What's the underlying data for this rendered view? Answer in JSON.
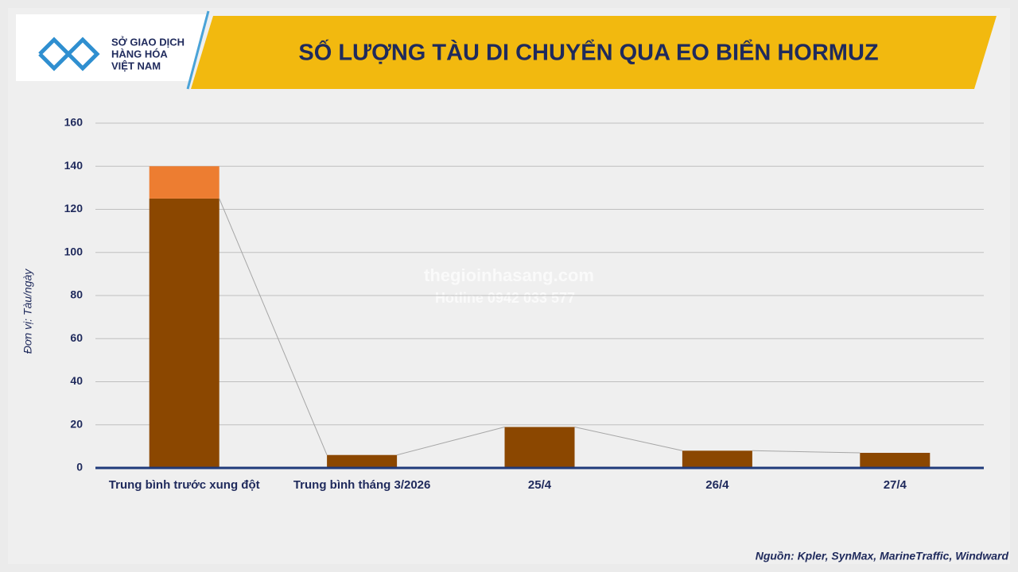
{
  "chart_data": {
    "type": "stacked-bar",
    "title": "SỐ LƯỢNG TÀU DI CHUYỂN QUA EO BIỂN HORMUZ",
    "logo": [
      "SỞ GIAO DỊCH",
      "HÀNG HÓA",
      "VIỆT NAM"
    ],
    "y_label": "Đơn vị: Tàu/ngày",
    "source": "Nguồn: Kpler, SynMax, MarineTraffic, Windward",
    "watermark": [
      "thegioinhasang.com",
      "Hotline 0942 033 577"
    ],
    "categories": [
      "Trung bình trước xung đột",
      "Trung bình tháng 3/2026",
      "25/4",
      "26/4",
      "27/4"
    ],
    "series": [
      {
        "color": "#8b4700",
        "values": [
          125,
          6,
          19,
          8,
          7
        ]
      },
      {
        "color": "#ed7d31",
        "values": [
          15,
          null,
          null,
          null,
          null
        ]
      }
    ],
    "ylim": [
      0,
      160
    ],
    "yticks": [
      0,
      20,
      40,
      60,
      80,
      100,
      120,
      140,
      160
    ],
    "grid": true,
    "connector_color": "#a6a6a6"
  }
}
